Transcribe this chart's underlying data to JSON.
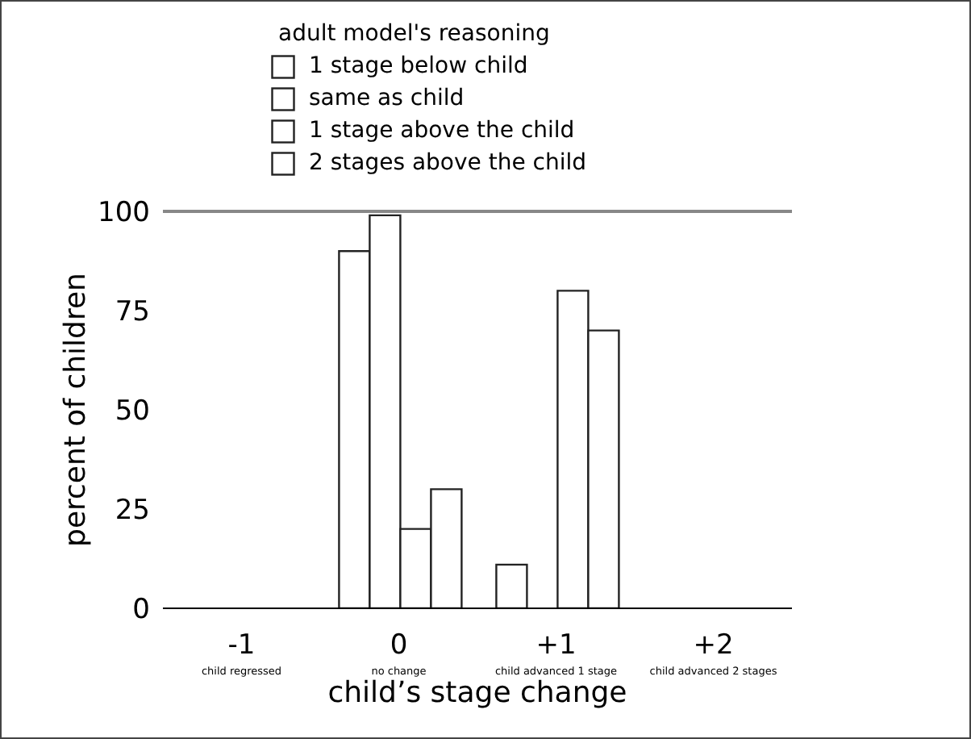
{
  "chart_data": {
    "type": "bar",
    "xlabel": "child’s stage change",
    "ylabel": "percent of children",
    "legend_title": "adult model's reasoning",
    "legend": "top",
    "categories": [
      "-1\nchild regressed",
      "0\nno change",
      "+1\nchild advanced 1 stage",
      "+2\nchild advanced 2 stages"
    ],
    "series": [
      {
        "name": "1 stage below child",
        "color": "#ffffff",
        "values": [
          0,
          90,
          11,
          0
        ]
      },
      {
        "name": "same as child",
        "color": "#ffffff",
        "values": [
          0,
          99,
          0,
          0
        ]
      },
      {
        "name": "1 stage above the child",
        "color": "#ffffff",
        "values": [
          0,
          20,
          80,
          0
        ]
      },
      {
        "name": "2 stages above the child",
        "color": "#ffffff",
        "values": [
          0,
          30,
          70,
          0
        ]
      }
    ],
    "ylim": [
      0,
      100
    ],
    "yticks": [
      0,
      25,
      50,
      75,
      100
    ],
    "ref_lines": [
      {
        "axis": "y",
        "value": 100,
        "label": null,
        "color": "#888888"
      }
    ]
  }
}
